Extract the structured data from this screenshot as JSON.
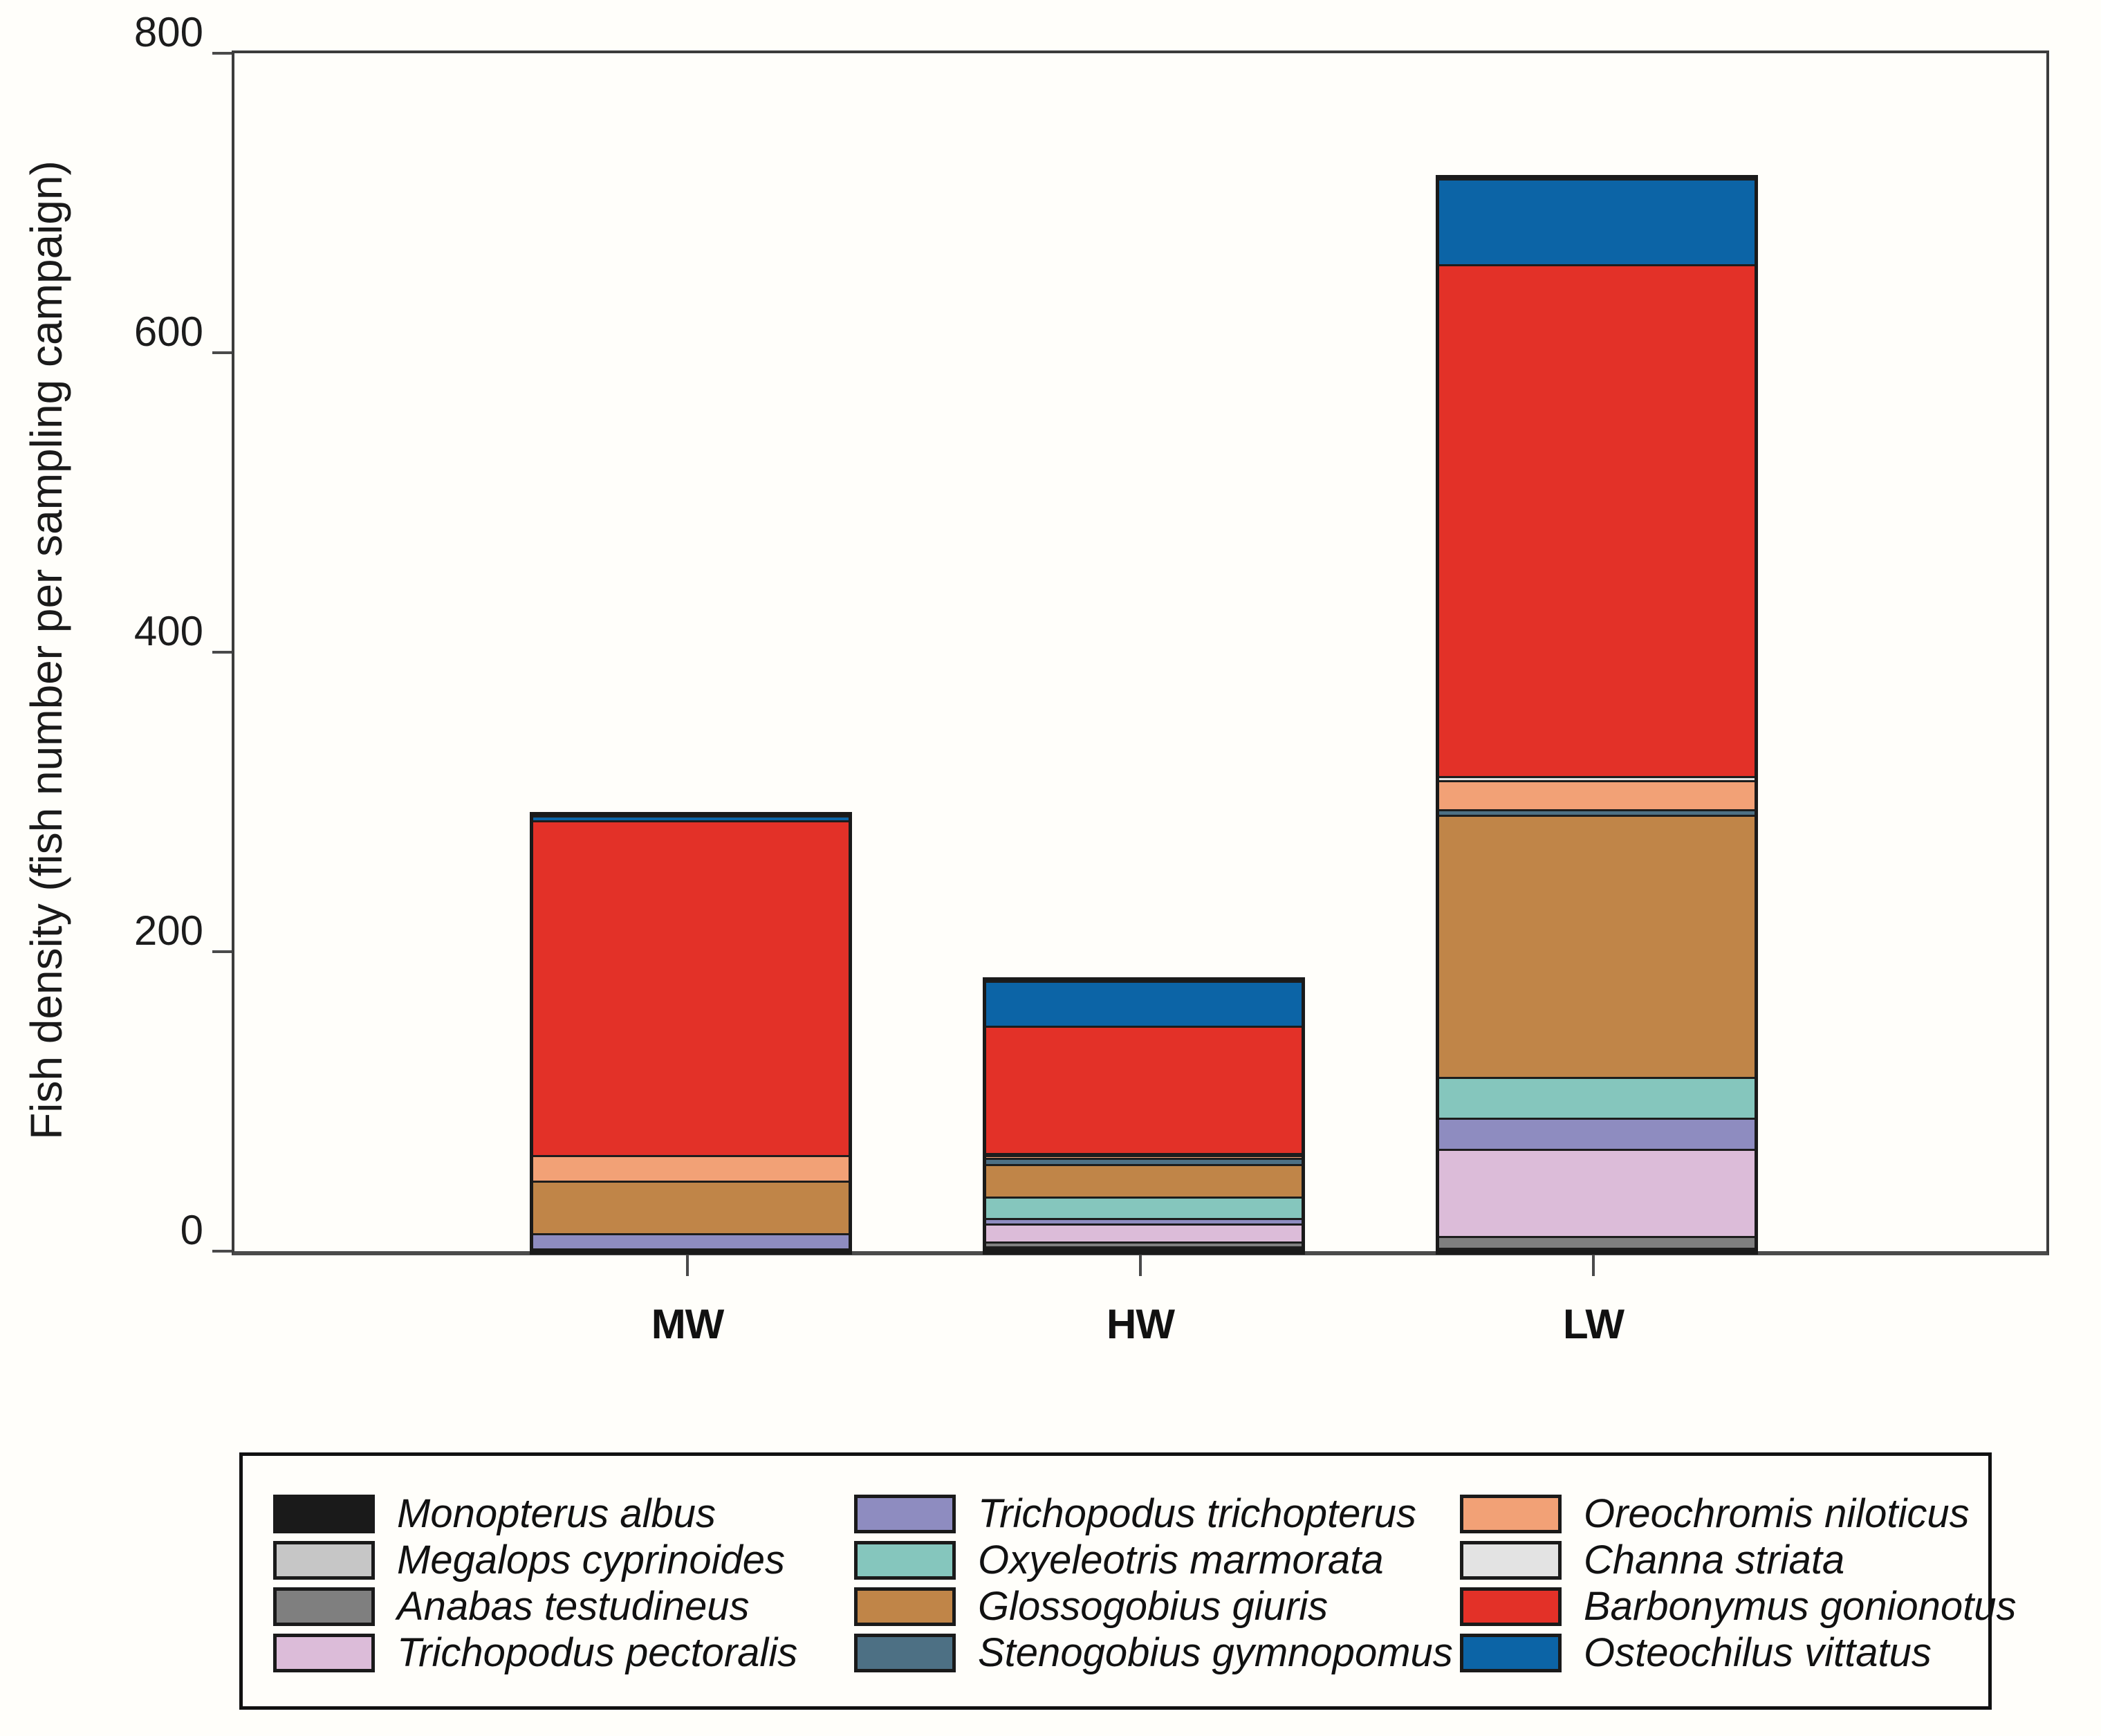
{
  "figure": {
    "background": "#fffefa",
    "frame_color": "#3c3c3c"
  },
  "chart_data": {
    "type": "bar",
    "stacked": true,
    "title": "",
    "xlabel": "",
    "ylabel": "Fish density (fish number per sampling campaign)",
    "ylim": [
      0,
      800
    ],
    "yticks": [
      "0",
      "200",
      "400",
      "600",
      "800"
    ],
    "ytick_values": [
      0,
      200,
      400,
      600,
      800
    ],
    "grid": false,
    "legend_position": "bottom",
    "categories": [
      "MW",
      "HW",
      "LW"
    ],
    "totals": [
      291,
      180,
      716
    ],
    "series": [
      {
        "name": "Monopterus albus",
        "color": "#1a1a1a",
        "values": [
          2,
          2,
          1
        ]
      },
      {
        "name": "Megalops cyprinoides",
        "color": "#c6c6c6",
        "values": [
          0,
          1,
          1
        ]
      },
      {
        "name": "Anabas testudineus",
        "color": "#7f7f7f",
        "values": [
          0,
          3,
          8
        ]
      },
      {
        "name": "Trichopodus pectoralis",
        "color": "#dcbcd9",
        "values": [
          0,
          12,
          58
        ]
      },
      {
        "name": "Trichopodus trichopterus",
        "color": "#8e8cc0",
        "values": [
          10,
          4,
          21
        ]
      },
      {
        "name": "Oxyeleotris marmorata",
        "color": "#85c6bd",
        "values": [
          0,
          14,
          27
        ]
      },
      {
        "name": "Glossogobius giuris",
        "color": "#c08548",
        "values": [
          35,
          22,
          175
        ]
      },
      {
        "name": "Stenogobius gymnopomus",
        "color": "#4d7084",
        "values": [
          0,
          4,
          4
        ]
      },
      {
        "name": "Oreochromis niloticus",
        "color": "#f2a176",
        "values": [
          17,
          2,
          19
        ]
      },
      {
        "name": "Channa striata",
        "color": "#e3e3e3",
        "values": [
          0,
          1,
          3
        ]
      },
      {
        "name": "Barbonymus gonionotus",
        "color": "#e33128",
        "values": [
          224,
          85,
          342
        ]
      },
      {
        "name": "Osteochilus vittatus",
        "color": "#0c64a6",
        "values": [
          3,
          30,
          57
        ]
      }
    ]
  }
}
